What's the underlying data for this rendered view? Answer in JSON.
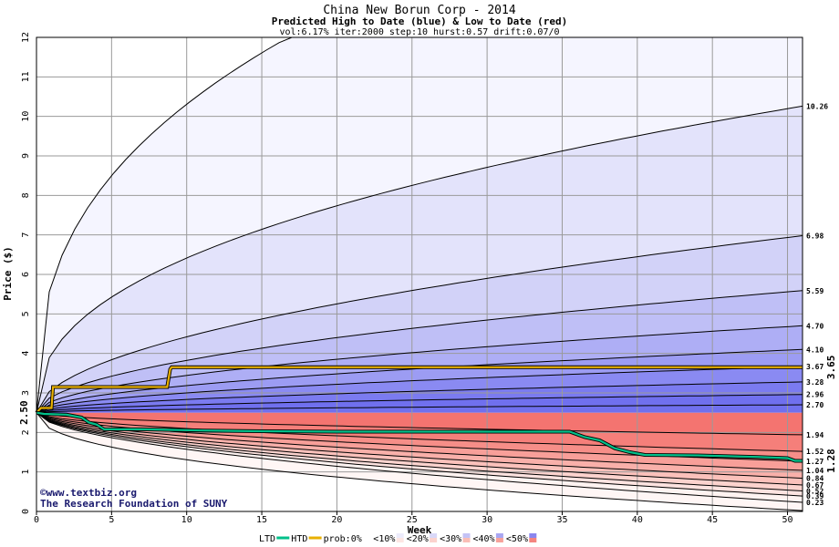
{
  "chart_data": {
    "type": "area",
    "title": "China New Borun Corp - 2014",
    "subtitle": "Predicted High to Date (blue) &  Low to Date (red)",
    "params": "vol:6.17% iter:2000 step:10 hurst:0.57 drift:0.07/0",
    "xlabel": "Week",
    "ylabel": "Price ($)",
    "xlim": [
      0,
      51
    ],
    "ylim": [
      0,
      12
    ],
    "xticks": [
      "0",
      "5",
      "10",
      "15",
      "20",
      "25",
      "30",
      "35",
      "40",
      "45",
      "50"
    ],
    "yticks": [
      "0",
      "1",
      "2",
      "3",
      "4",
      "5",
      "6",
      "7",
      "8",
      "9",
      "10",
      "11",
      "12"
    ],
    "start_price": 2.5,
    "start_label": "2.50",
    "upper_bands": [
      2.7,
      2.96,
      3.28,
      3.67,
      4.1,
      4.7,
      5.59,
      6.98,
      10.26
    ],
    "upper_labels": [
      "2.70",
      "2.96",
      "3.28",
      "3.67",
      "4.10",
      "4.70",
      "5.59",
      "6.98",
      "10.26"
    ],
    "lower_bands": [
      1.94,
      1.52,
      1.27,
      1.04,
      0.84,
      0.67,
      0.52,
      0.39,
      0.23
    ],
    "lower_labels": [
      "1.94",
      "1.52",
      "1.27",
      "1.04",
      "0.84",
      "0.67",
      "0.52",
      "0.39",
      "0.23"
    ],
    "htd_series": {
      "label": "3.65",
      "points": [
        [
          0,
          2.5
        ],
        [
          0.3,
          2.62
        ],
        [
          1,
          2.62
        ],
        [
          1.1,
          3.15
        ],
        [
          8.7,
          3.15
        ],
        [
          8.9,
          3.6
        ],
        [
          9,
          3.65
        ],
        [
          51,
          3.65
        ]
      ]
    },
    "ltd_series": {
      "label": "1.28",
      "points": [
        [
          0,
          2.5
        ],
        [
          0.5,
          2.47
        ],
        [
          2,
          2.45
        ],
        [
          3,
          2.38
        ],
        [
          3.5,
          2.25
        ],
        [
          4,
          2.2
        ],
        [
          4.5,
          2.08
        ],
        [
          7,
          2.08
        ],
        [
          11,
          2.05
        ],
        [
          15,
          2.03
        ],
        [
          20,
          2.02
        ],
        [
          25,
          2.02
        ],
        [
          30,
          2.02
        ],
        [
          35.5,
          2.02
        ],
        [
          36.5,
          1.88
        ],
        [
          37.5,
          1.8
        ],
        [
          38.5,
          1.6
        ],
        [
          39.5,
          1.5
        ],
        [
          40.5,
          1.43
        ],
        [
          44,
          1.42
        ],
        [
          48,
          1.38
        ],
        [
          50,
          1.35
        ],
        [
          50.5,
          1.28
        ],
        [
          51,
          1.28
        ]
      ]
    },
    "legend": {
      "items": [
        "LTD",
        "HTD",
        "prob:0%",
        "<10%",
        "<20%",
        "<30%",
        "<40%",
        "<50%"
      ],
      "placement": "bottom"
    },
    "colors": {
      "upper": [
        "#f3f3ff",
        "#e3e3fb",
        "#d2d2f8",
        "#bfbff6",
        "#aeaef5",
        "#9c9cf3",
        "#8a8af2",
        "#7b7bf0",
        "#7070ee"
      ],
      "lower": [
        "#fef3f1",
        "#fde3e0",
        "#fcd3ce",
        "#fbc1bb",
        "#f9b0aa",
        "#f89f99",
        "#f68e88",
        "#f57f7a",
        "#f47470"
      ],
      "htd": "#e8b000",
      "ltd": "#00c08a",
      "htd_label": "#a08000",
      "ltd_label": "#009070"
    }
  },
  "watermark": {
    "line1": "www.textbiz.org",
    "line2": "The Research Foundation of SUNY"
  }
}
